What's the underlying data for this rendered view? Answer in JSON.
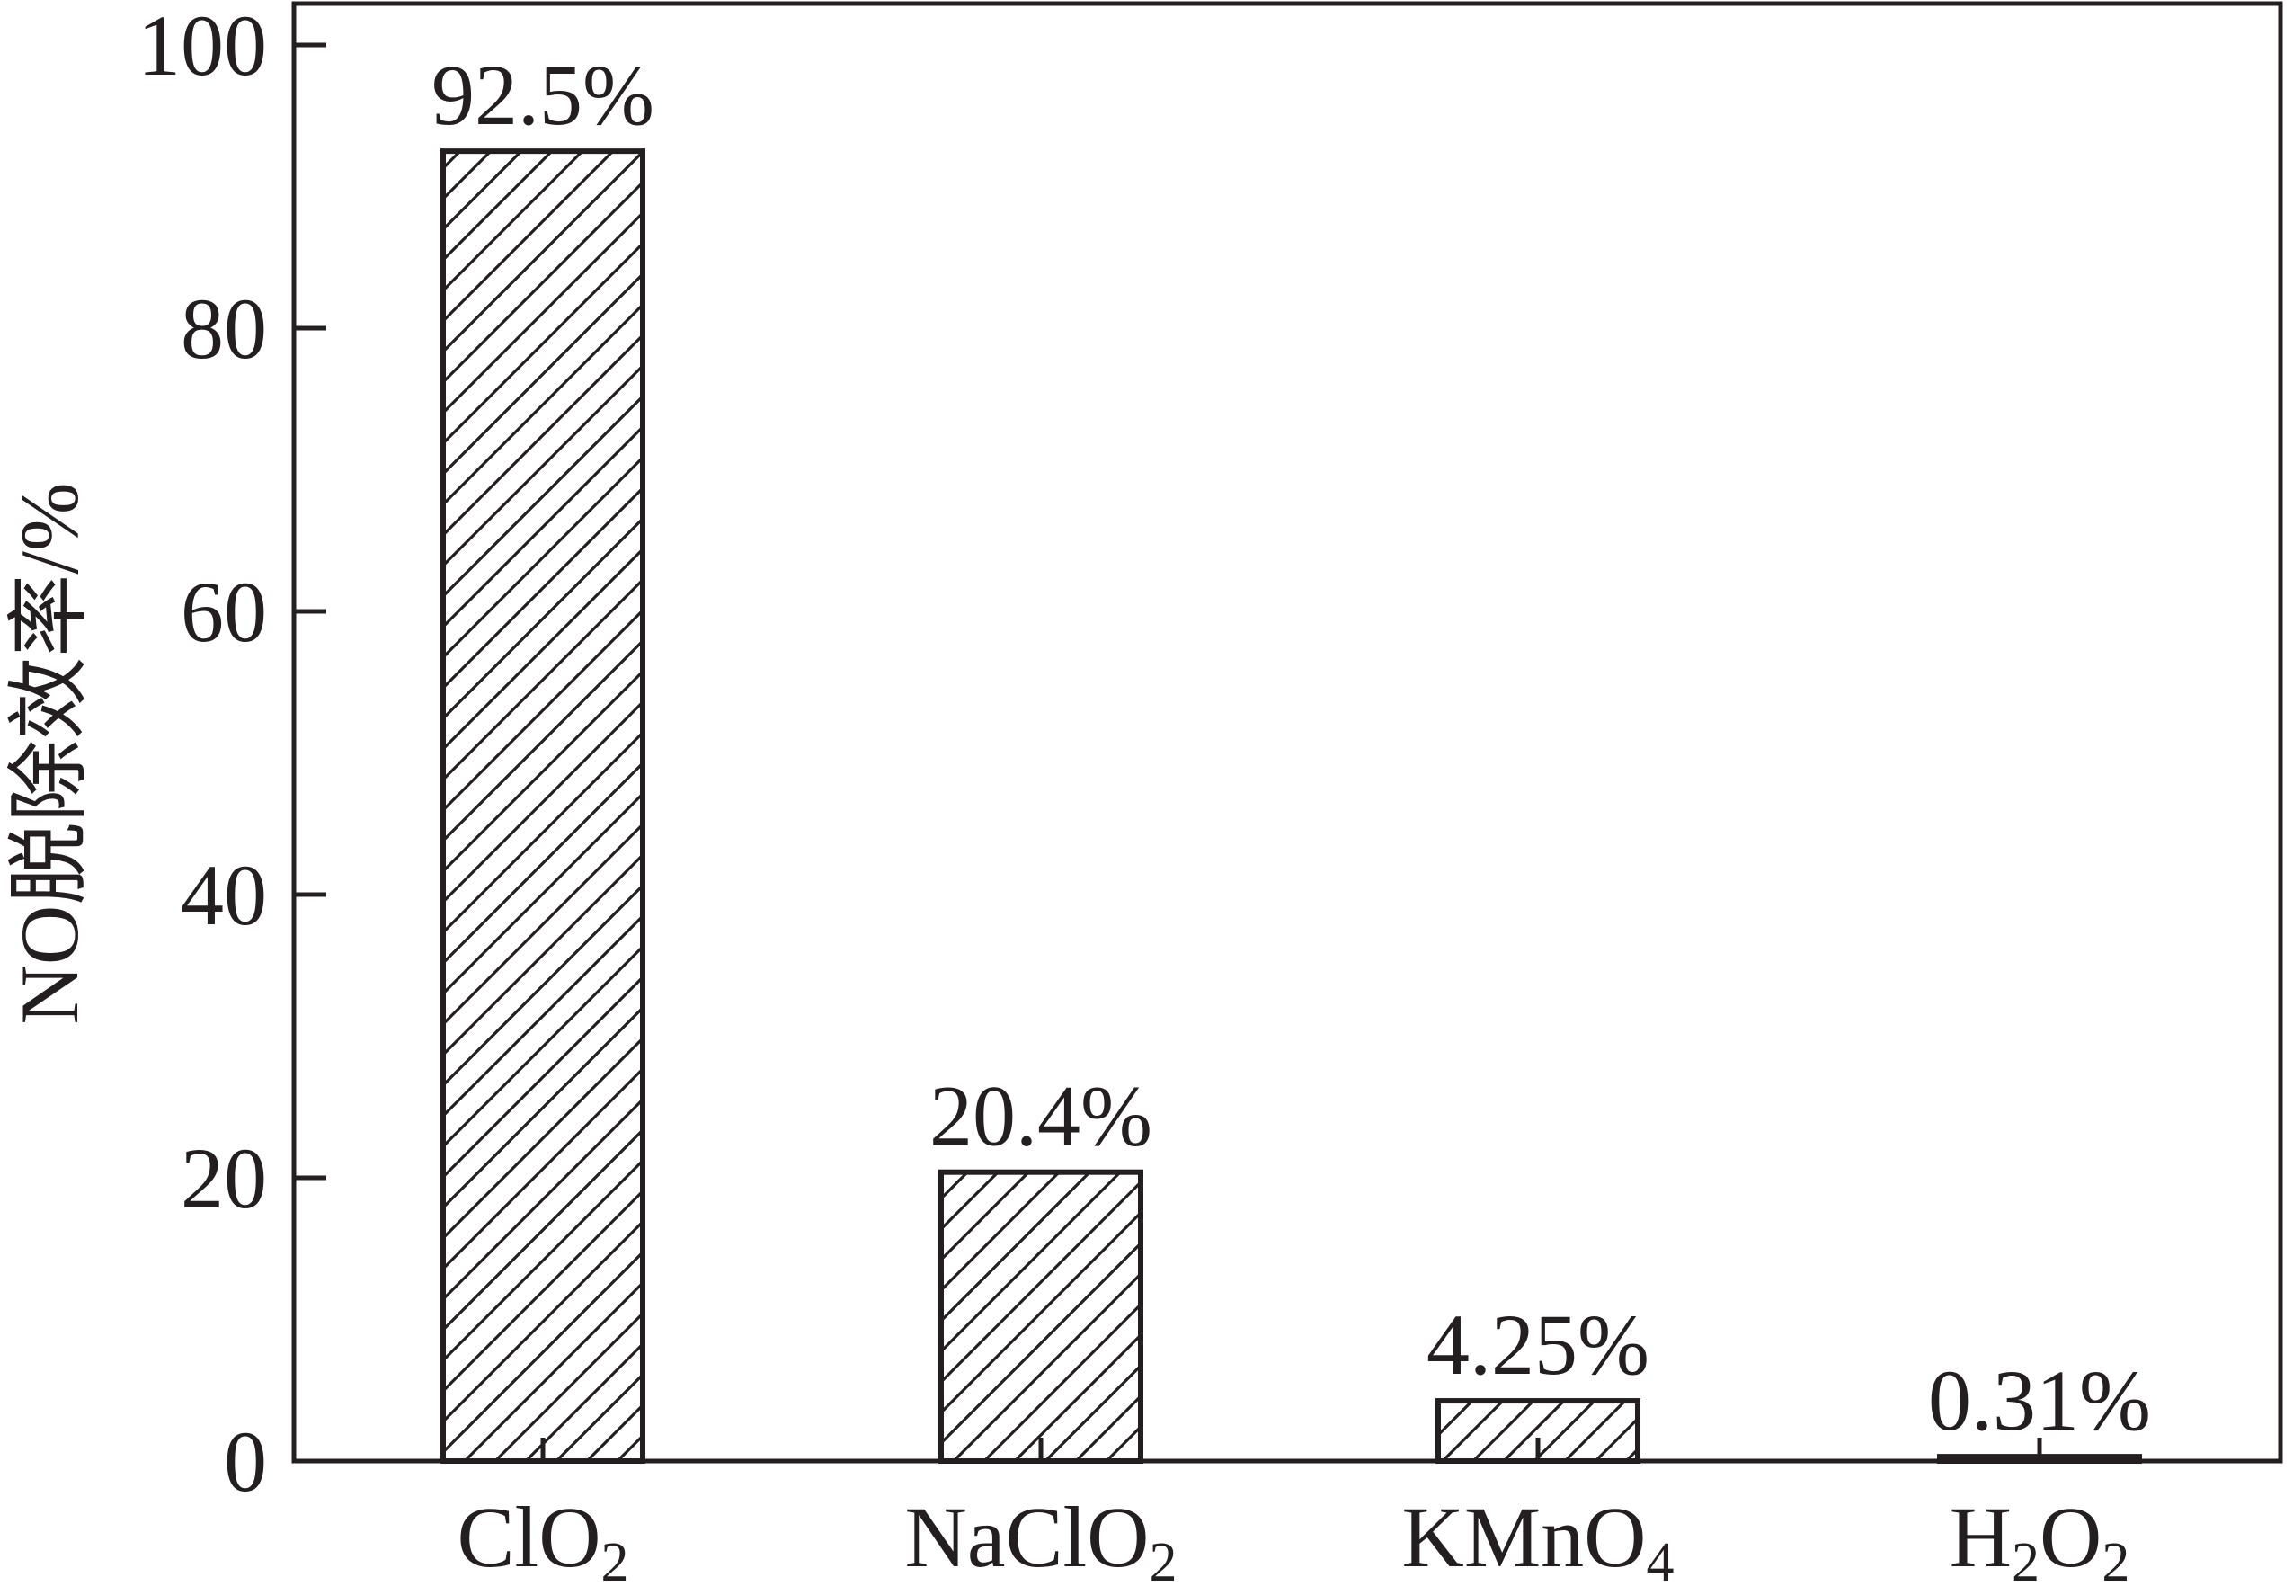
{
  "chart_data": {
    "type": "bar",
    "categories": [
      "ClO2",
      "NaClO2",
      "KMnO4",
      "H2O2"
    ],
    "category_labels": [
      {
        "main": "ClO",
        "sub": "2"
      },
      {
        "main": "NaClO",
        "sub": "2"
      },
      {
        "main": "KMnO",
        "sub": "4"
      },
      {
        "parts": [
          {
            "t": "H"
          },
          {
            "t": "2",
            "sub": true
          },
          {
            "t": "O"
          },
          {
            "t": "2",
            "sub": true
          }
        ]
      }
    ],
    "values": [
      92.5,
      20.4,
      4.25,
      0.31
    ],
    "data_labels": [
      "92.5%",
      "20.4%",
      "4.25%",
      "0.31%"
    ],
    "title": "",
    "xlabel": "",
    "ylabel": "NO脱除效率/%",
    "ylim": [
      0,
      100
    ],
    "yticks": [
      0,
      20,
      40,
      60,
      80,
      100
    ],
    "ytick_labels": [
      "0",
      "20",
      "40",
      "60",
      "80",
      "100"
    ],
    "grid": false,
    "bar_pattern": "diagonal-hatch",
    "colors": {
      "ink": "#231f20",
      "bar_fill": "#ffffff",
      "background": "#ffffff"
    }
  }
}
